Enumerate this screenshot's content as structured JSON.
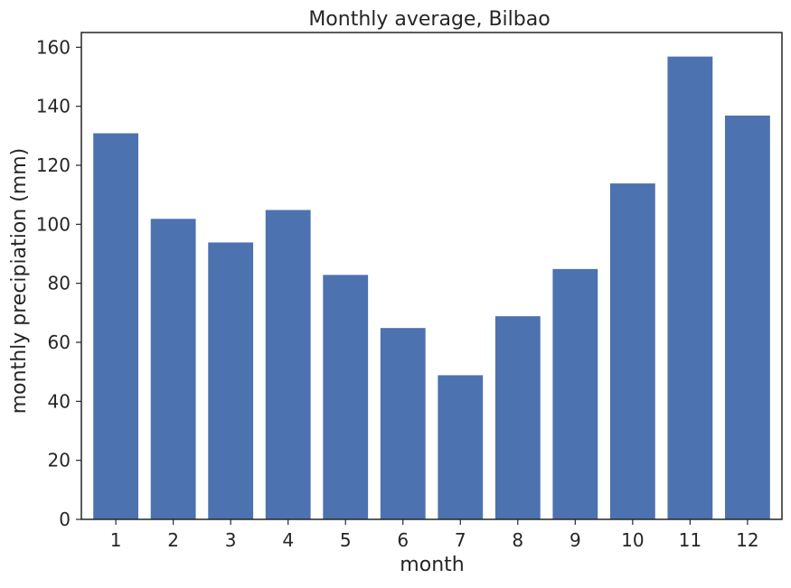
{
  "chart_data": {
    "type": "bar",
    "title": "Monthly average, Bilbao",
    "xlabel": "month",
    "ylabel": "monthly precipiation (mm)",
    "categories": [
      "1",
      "2",
      "3",
      "4",
      "5",
      "6",
      "7",
      "8",
      "9",
      "10",
      "11",
      "12"
    ],
    "values": [
      131,
      102,
      94,
      105,
      83,
      65,
      49,
      69,
      85,
      114,
      157,
      137
    ],
    "ylim": [
      0,
      165
    ],
    "yticks": [
      0,
      20,
      40,
      60,
      80,
      100,
      120,
      140,
      160
    ],
    "grid": false,
    "bar_color": "#4c72b0"
  }
}
